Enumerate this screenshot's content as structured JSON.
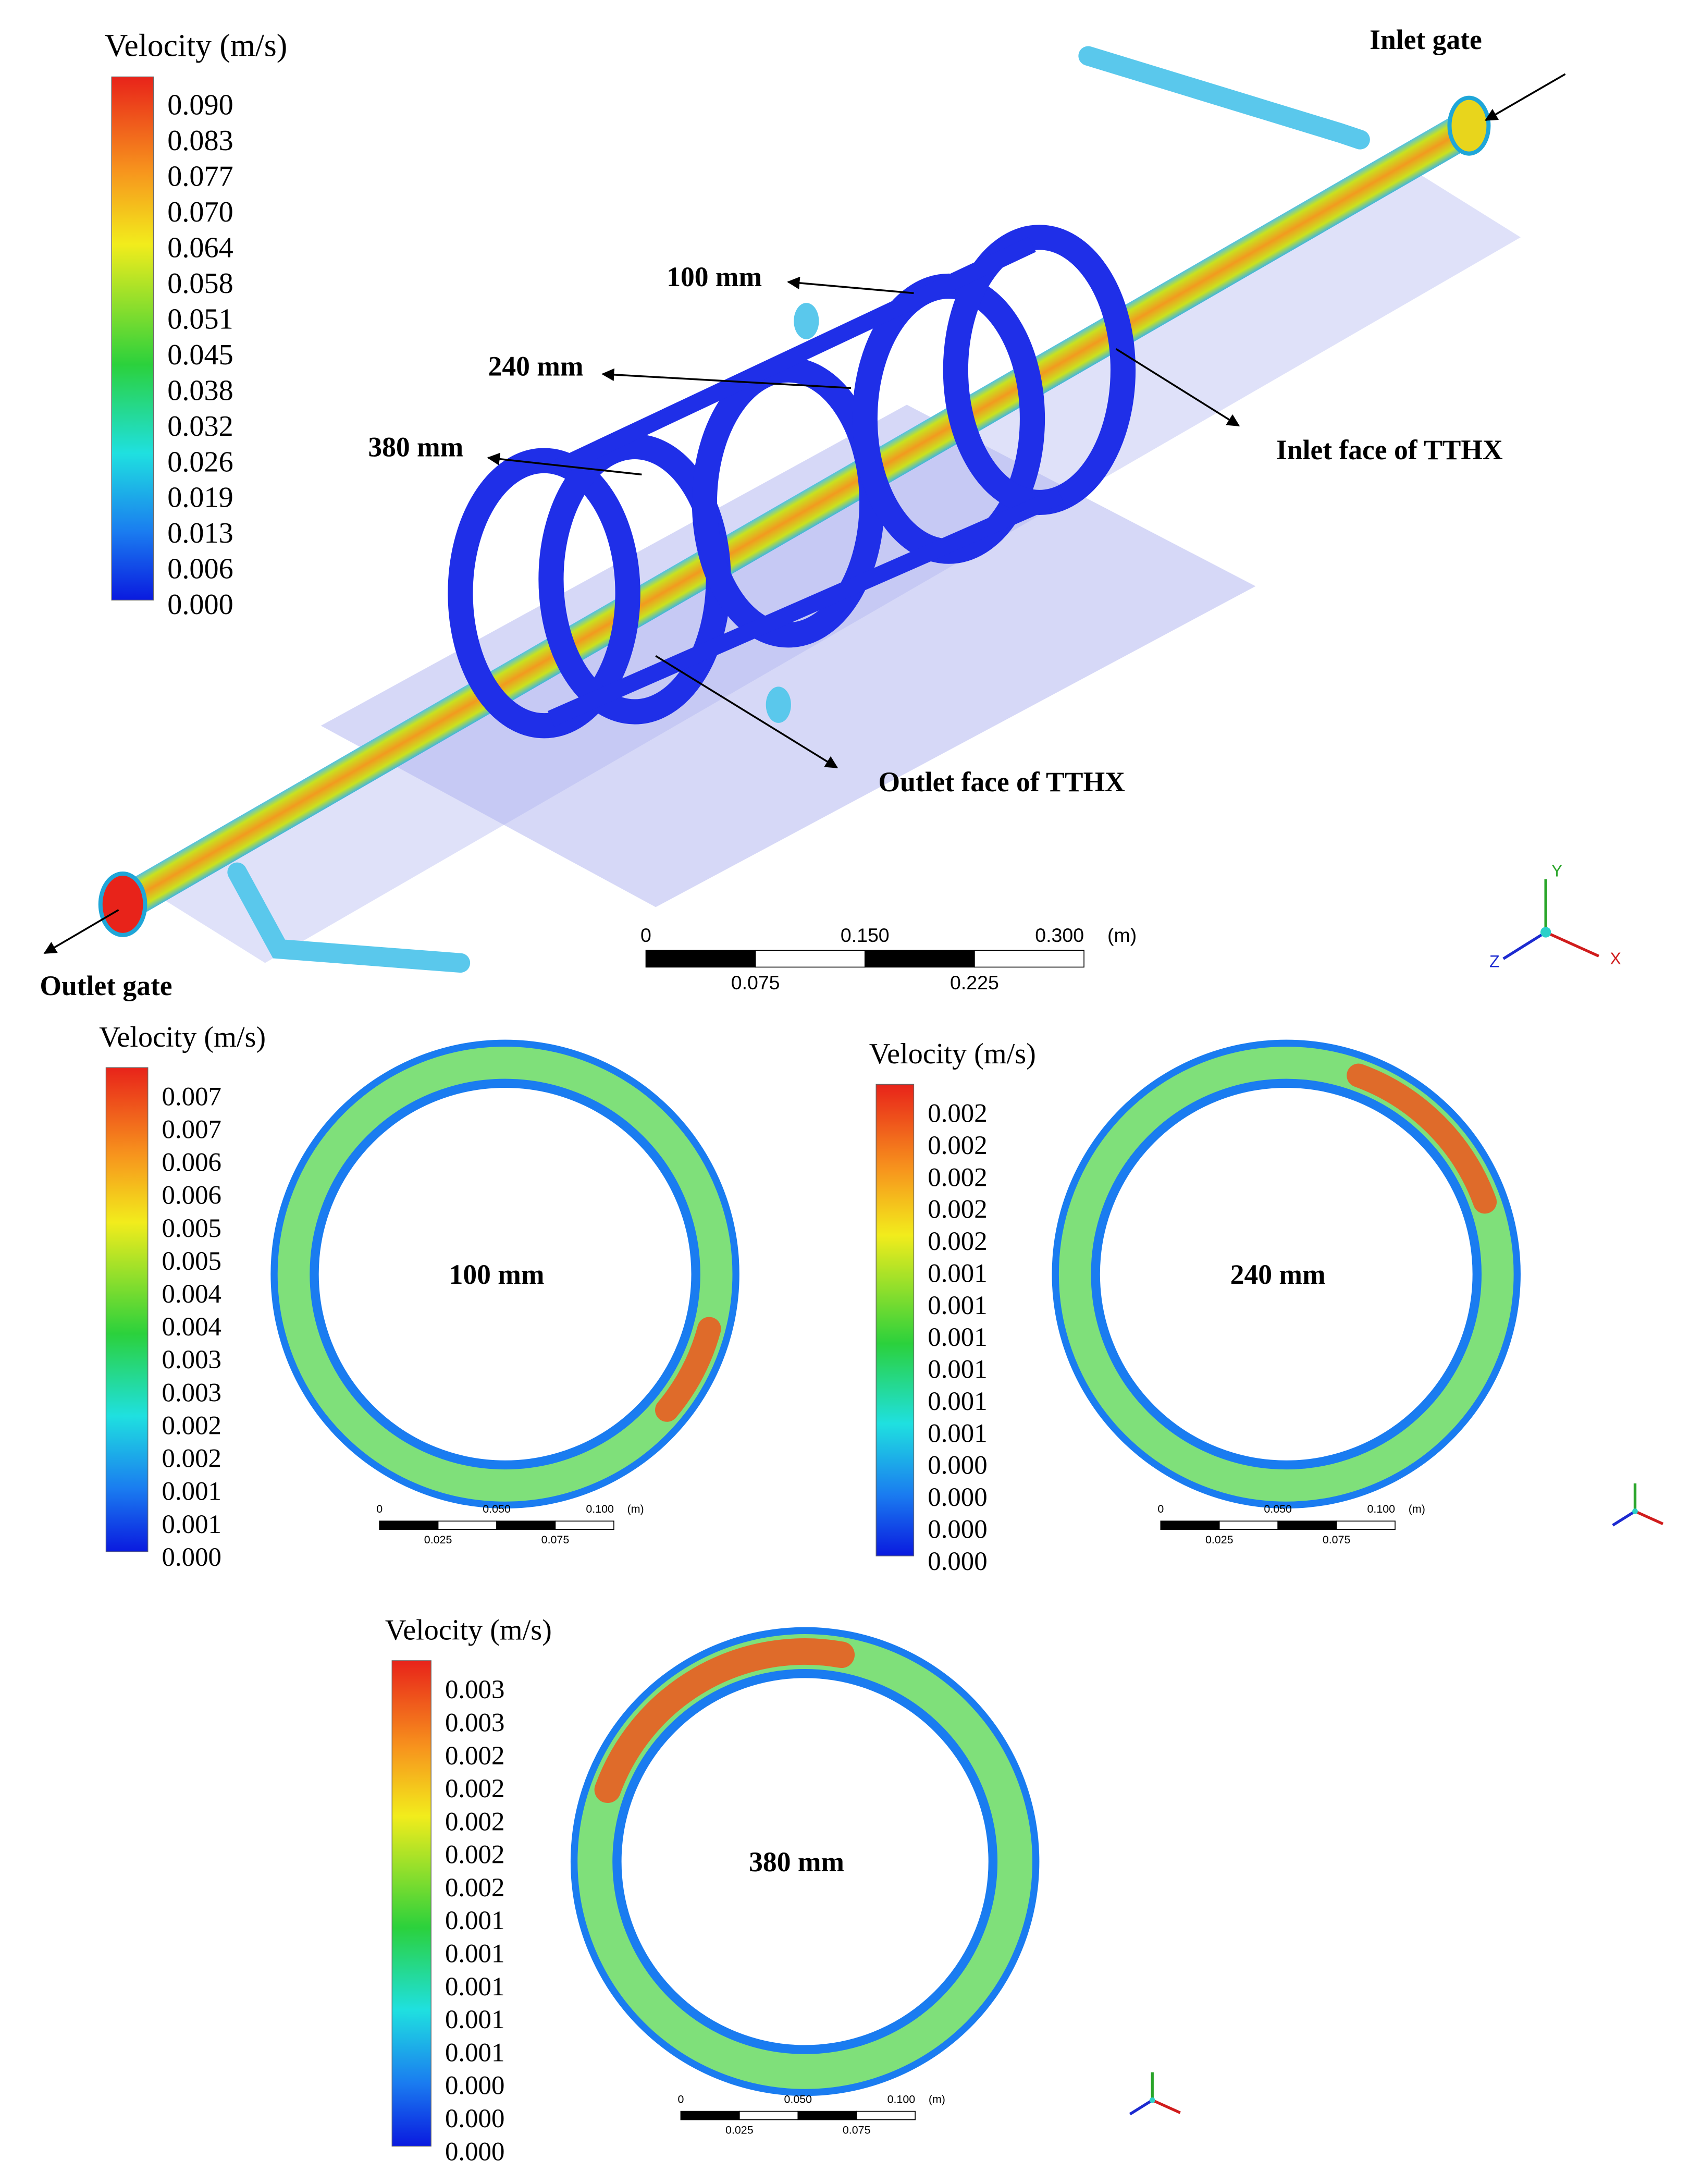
{
  "main_view": {
    "colorbar": {
      "title": "Velocity (m/s)",
      "labels": [
        "0.090",
        "0.083",
        "0.077",
        "0.070",
        "0.064",
        "0.058",
        "0.051",
        "0.045",
        "0.038",
        "0.032",
        "0.026",
        "0.019",
        "0.013",
        "0.006",
        "0.000"
      ]
    },
    "annotations": {
      "inlet_gate": "Inlet gate",
      "plane_100": "100 mm",
      "plane_240": "240 mm",
      "plane_380": "380 mm",
      "inlet_face": "Inlet face of TTHX",
      "outlet_face": "Outlet face of TTHX",
      "outlet_gate": "Outlet gate"
    },
    "scale_bar": {
      "top_labels": [
        "0",
        "0.150",
        "0.300"
      ],
      "unit": "(m)",
      "bottom_labels": [
        "0.075",
        "0.225"
      ]
    },
    "axes": {
      "y": "Y",
      "x": "X",
      "z": "Z"
    }
  },
  "sections": [
    {
      "label": "100 mm",
      "colorbar": {
        "title": "Velocity (m/s)",
        "labels": [
          "0.007",
          "0.007",
          "0.006",
          "0.006",
          "0.005",
          "0.005",
          "0.004",
          "0.004",
          "0.003",
          "0.003",
          "0.002",
          "0.002",
          "0.001",
          "0.001",
          "0.000"
        ]
      },
      "scale_bar": {
        "top_labels": [
          "0",
          "0.050",
          "0.100"
        ],
        "unit": "(m)",
        "bottom_labels": [
          "0.025",
          "0.075"
        ]
      }
    },
    {
      "label": "240 mm",
      "colorbar": {
        "title": "Velocity (m/s)",
        "labels": [
          "0.002",
          "0.002",
          "0.002",
          "0.002",
          "0.002",
          "0.001",
          "0.001",
          "0.001",
          "0.001",
          "0.001",
          "0.001",
          "0.000",
          "0.000",
          "0.000",
          "0.000"
        ]
      },
      "scale_bar": {
        "top_labels": [
          "0",
          "0.050",
          "0.100"
        ],
        "unit": "(m)",
        "bottom_labels": [
          "0.025",
          "0.075"
        ]
      }
    },
    {
      "label": "380 mm",
      "colorbar": {
        "title": "Velocity (m/s)",
        "labels": [
          "0.003",
          "0.003",
          "0.002",
          "0.002",
          "0.002",
          "0.002",
          "0.002",
          "0.001",
          "0.001",
          "0.001",
          "0.001",
          "0.001",
          "0.000",
          "0.000",
          "0.000"
        ]
      },
      "scale_bar": {
        "top_labels": [
          "0",
          "0.050",
          "0.100"
        ],
        "unit": "(m)",
        "bottom_labels": [
          "0.025",
          "0.075"
        ]
      }
    }
  ]
}
